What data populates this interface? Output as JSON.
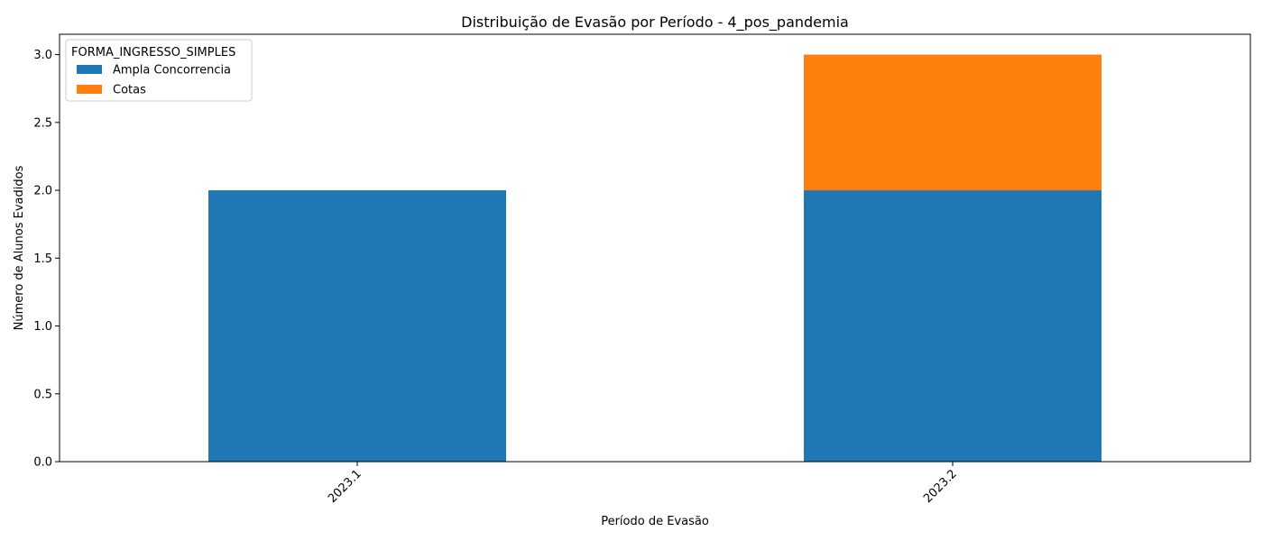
{
  "chart_data": {
    "type": "bar",
    "stacked": true,
    "title": "Distribuição de Evasão por Período - 4_pos_pandemia",
    "xlabel": "Período de Evasão",
    "ylabel": "Número de Alunos Evadidos",
    "categories": [
      "2023.1",
      "2023.2"
    ],
    "series": [
      {
        "name": "Ampla Concorrencia",
        "values": [
          2,
          2
        ],
        "color": "#1f77b4"
      },
      {
        "name": "Cotas",
        "values": [
          0,
          1
        ],
        "color": "#ff7f0e"
      }
    ],
    "ylim": [
      0,
      3.15
    ],
    "yticks": [
      "0.0",
      "0.5",
      "1.0",
      "1.5",
      "2.0",
      "2.5",
      "3.0"
    ],
    "legend": {
      "title": "FORMA_INGRESSO_SIMPLES",
      "placement": "top-left"
    },
    "grid": false,
    "xtick_rotation": 45
  }
}
